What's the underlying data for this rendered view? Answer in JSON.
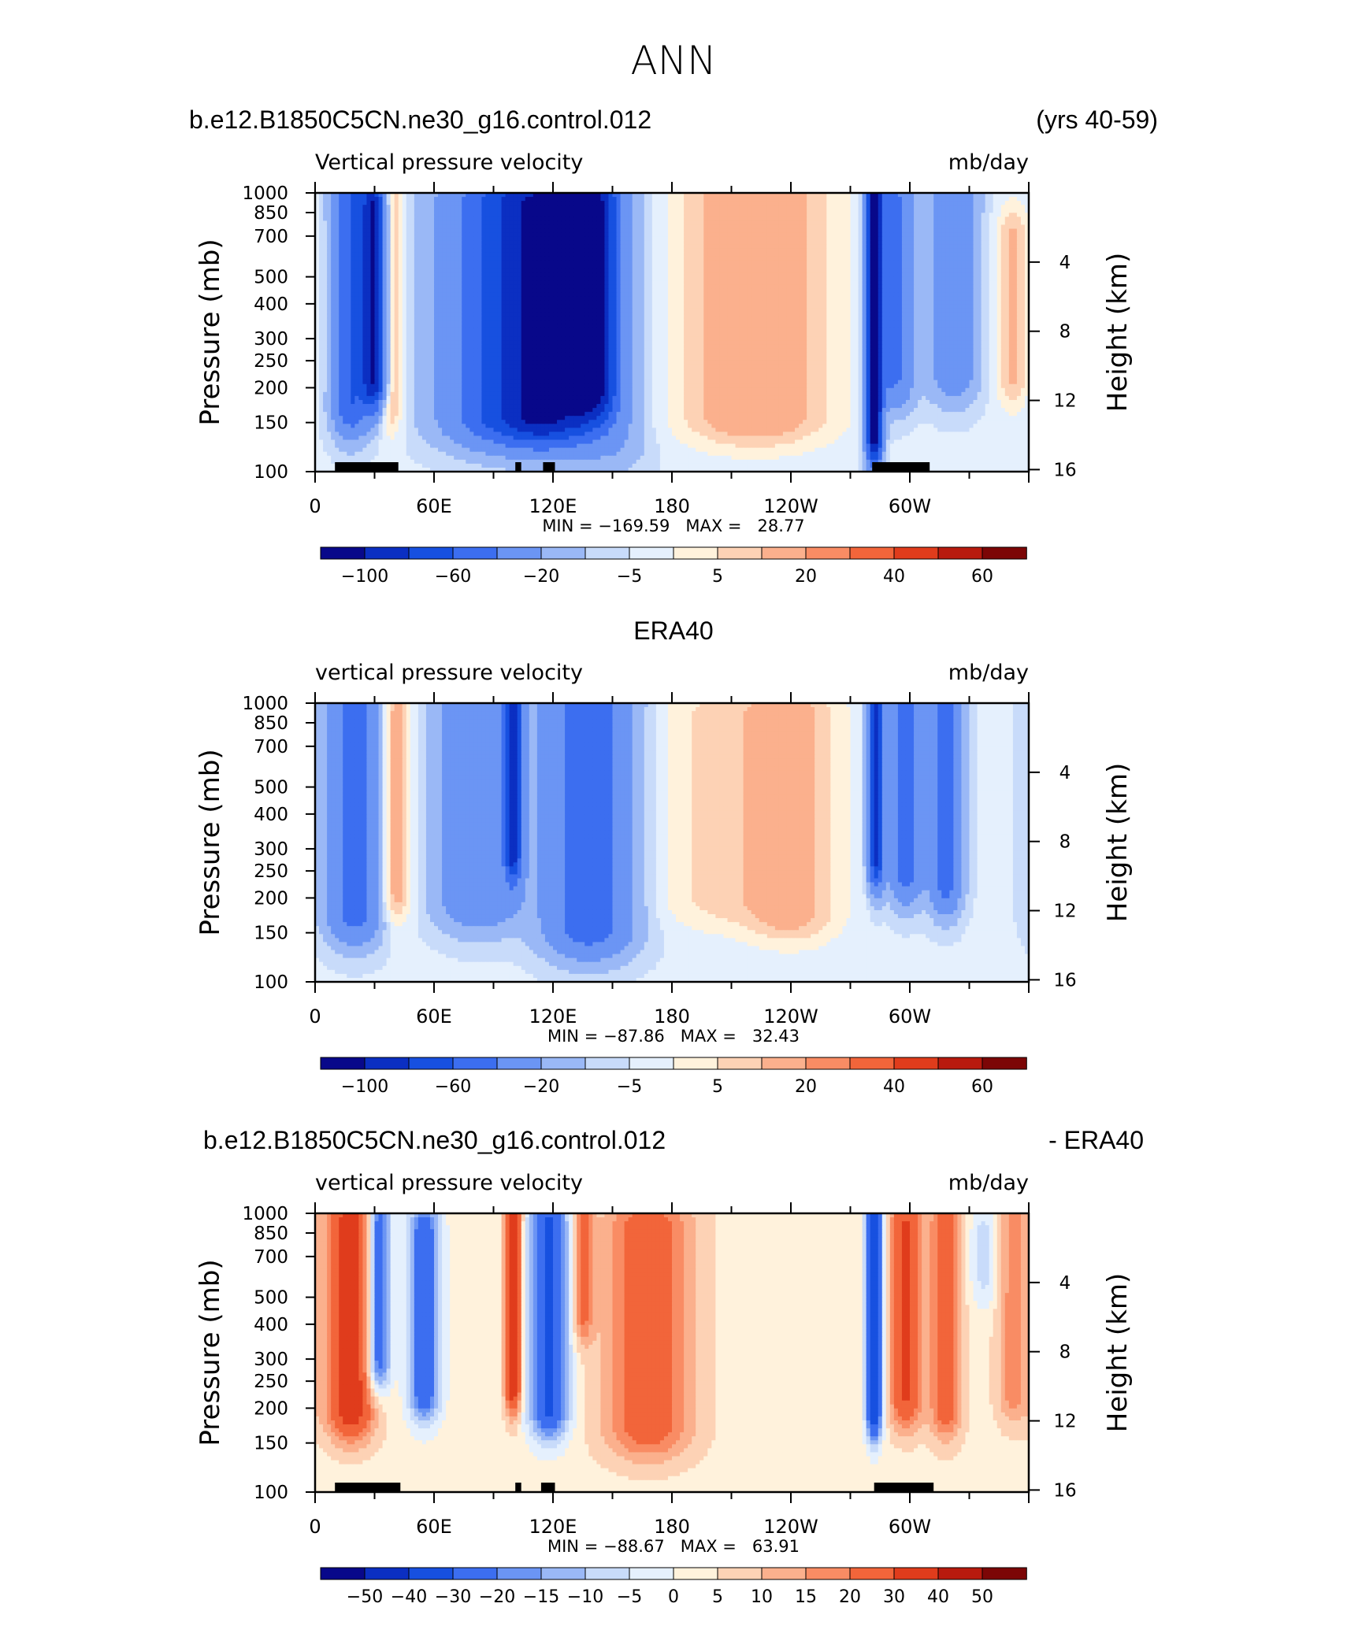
{
  "figure": {
    "main_title": "ANN",
    "season_label": "(yrs 40-59)",
    "diff_suffix": "- ERA40"
  },
  "colors": {
    "ramp": [
      "#08088a",
      "#0b2fc2",
      "#1750e0",
      "#3c6ef0",
      "#6b95f4",
      "#9ab8f6",
      "#c8dbfa",
      "#e5f0fd",
      "#fff2dc",
      "#fdd2b5",
      "#fbb08d",
      "#f98c64",
      "#f2653a",
      "#e03c1c",
      "#b81a0e",
      "#7c0606"
    ],
    "mask": "#000000"
  },
  "chart_data": [
    {
      "type": "heatmap",
      "title": "b.e12.B1850C5CN.ne30_g16.control.012",
      "left_string": "Vertical pressure velocity",
      "right_string": "mb/day",
      "ylabel": "Pressure (mb)",
      "ylabel_right": "Height (km)",
      "x_ticks": [
        "0",
        "60E",
        "120E",
        "180",
        "120W",
        "60W"
      ],
      "y_ticks": [
        "100",
        "150",
        "200",
        "250",
        "300",
        "400",
        "500",
        "700",
        "850",
        "1000"
      ],
      "y2_ticks": [
        "16",
        "12",
        "8",
        "4"
      ],
      "stats": "MIN = −169.59   MAX =   28.77",
      "colorbar_labels": [
        "−100",
        "−60",
        "−20",
        "−5",
        "5",
        "20",
        "40",
        "60"
      ],
      "xlim": [
        0,
        360
      ],
      "ylim": [
        1000,
        100
      ],
      "features": [
        {
          "lon": 18,
          "width": 9,
          "ptop": 175,
          "pbot": 970,
          "value": -55
        },
        {
          "lon": 30,
          "width": 6,
          "ptop": 220,
          "pbot": 860,
          "value": -95
        },
        {
          "lon": 38,
          "width": 6,
          "ptop": 180,
          "pbot": 930,
          "value": 20
        },
        {
          "lon": 95,
          "width": 30,
          "ptop": 160,
          "pbot": 900,
          "value": -60
        },
        {
          "lon": 120,
          "width": 22,
          "ptop": 160,
          "pbot": 920,
          "value": -70
        },
        {
          "lon": 140,
          "width": 12,
          "ptop": 200,
          "pbot": 890,
          "value": -75
        },
        {
          "lon": 150,
          "width": 18,
          "ptop": 130,
          "pbot": 950,
          "value": -15
        },
        {
          "lon": 222,
          "width": 38,
          "ptop": 160,
          "pbot": 980,
          "value": 22
        },
        {
          "lon": 282,
          "width": 4,
          "ptop": 140,
          "pbot": 1000,
          "value": -120
        },
        {
          "lon": 292,
          "width": 10,
          "ptop": 220,
          "pbot": 950,
          "value": -40
        },
        {
          "lon": 322,
          "width": 12,
          "ptop": 230,
          "pbot": 950,
          "value": -30
        },
        {
          "lon": 352,
          "width": 8,
          "ptop": 220,
          "pbot": 700,
          "value": 15
        }
      ],
      "mask_ranges": [
        [
          10,
          42
        ],
        [
          101,
          104
        ],
        [
          115,
          121
        ],
        [
          281,
          310
        ]
      ]
    },
    {
      "type": "heatmap",
      "title": "ERA40",
      "left_string": "vertical pressure velocity",
      "right_string": "mb/day",
      "ylabel": "Pressure (mb)",
      "ylabel_right": "Height (km)",
      "x_ticks": [
        "0",
        "60E",
        "120E",
        "180",
        "120W",
        "60W"
      ],
      "y_ticks": [
        "100",
        "150",
        "200",
        "250",
        "300",
        "400",
        "500",
        "700",
        "850",
        "1000"
      ],
      "y2_ticks": [
        "16",
        "12",
        "8",
        "4"
      ],
      "stats": "MIN = −87.86   MAX =   32.43",
      "colorbar_labels": [
        "−100",
        "−60",
        "−20",
        "−5",
        "5",
        "20",
        "40",
        "60"
      ],
      "xlim": [
        0,
        360
      ],
      "ylim": [
        1000,
        100
      ],
      "features": [
        {
          "lon": 20,
          "width": 14,
          "ptop": 180,
          "pbot": 950,
          "value": -45
        },
        {
          "lon": 40,
          "width": 8,
          "ptop": 210,
          "pbot": 920,
          "value": 22
        },
        {
          "lon": 82,
          "width": 20,
          "ptop": 200,
          "pbot": 930,
          "value": -35
        },
        {
          "lon": 100,
          "width": 4,
          "ptop": 300,
          "pbot": 950,
          "value": -75
        },
        {
          "lon": 138,
          "width": 22,
          "ptop": 160,
          "pbot": 960,
          "value": -50
        },
        {
          "lon": 200,
          "width": 30,
          "ptop": 200,
          "pbot": 900,
          "value": 10
        },
        {
          "lon": 240,
          "width": 24,
          "ptop": 180,
          "pbot": 900,
          "value": 18
        },
        {
          "lon": 283,
          "width": 4,
          "ptop": 280,
          "pbot": 1000,
          "value": -80
        },
        {
          "lon": 298,
          "width": 8,
          "ptop": 250,
          "pbot": 930,
          "value": -45
        },
        {
          "lon": 318,
          "width": 8,
          "ptop": 230,
          "pbot": 930,
          "value": -45
        }
      ],
      "mask_ranges": []
    },
    {
      "type": "heatmap",
      "title": "b.e12.B1850C5CN.ne30_g16.control.012",
      "left_string": "vertical pressure velocity",
      "right_string": "mb/day",
      "ylabel": "Pressure (mb)",
      "ylabel_right": "Height (km)",
      "x_ticks": [
        "0",
        "60E",
        "120E",
        "180",
        "120W",
        "60W"
      ],
      "y_ticks": [
        "100",
        "150",
        "200",
        "250",
        "300",
        "400",
        "500",
        "700",
        "850",
        "1000"
      ],
      "y2_ticks": [
        "16",
        "12",
        "8",
        "4"
      ],
      "stats": "MIN = −88.67   MAX =   63.91",
      "colorbar_labels": [
        "−50",
        "−40",
        "−30",
        "−20",
        "−15",
        "−10",
        "−5",
        "0",
        "5",
        "10",
        "15",
        "20",
        "30",
        "40",
        "50"
      ],
      "xlim": [
        0,
        360
      ],
      "ylim": [
        1000,
        100
      ],
      "features": [
        {
          "lon": 18,
          "width": 12,
          "ptop": 200,
          "pbot": 900,
          "value": 35
        },
        {
          "lon": 32,
          "width": 6,
          "ptop": 300,
          "pbot": 900,
          "value": -35
        },
        {
          "lon": 55,
          "width": 8,
          "ptop": 230,
          "pbot": 850,
          "value": -30
        },
        {
          "lon": 100,
          "width": 4,
          "ptop": 250,
          "pbot": 950,
          "value": 40
        },
        {
          "lon": 118,
          "width": 10,
          "ptop": 200,
          "pbot": 900,
          "value": -35
        },
        {
          "lon": 135,
          "width": 5,
          "ptop": 450,
          "pbot": 900,
          "value": 20
        },
        {
          "lon": 168,
          "width": 22,
          "ptop": 170,
          "pbot": 900,
          "value": 22
        },
        {
          "lon": 282,
          "width": 4,
          "ptop": 200,
          "pbot": 950,
          "value": -45
        },
        {
          "lon": 298,
          "width": 8,
          "ptop": 220,
          "pbot": 900,
          "value": 28
        },
        {
          "lon": 318,
          "width": 8,
          "ptop": 200,
          "pbot": 900,
          "value": 22
        },
        {
          "lon": 338,
          "width": 8,
          "ptop": 600,
          "pbot": 850,
          "value": -10
        },
        {
          "lon": 352,
          "width": 8,
          "ptop": 230,
          "pbot": 900,
          "value": 15
        }
      ],
      "mask_ranges": [
        [
          10,
          43
        ],
        [
          101,
          104
        ],
        [
          114,
          121
        ],
        [
          282,
          312
        ]
      ]
    }
  ]
}
